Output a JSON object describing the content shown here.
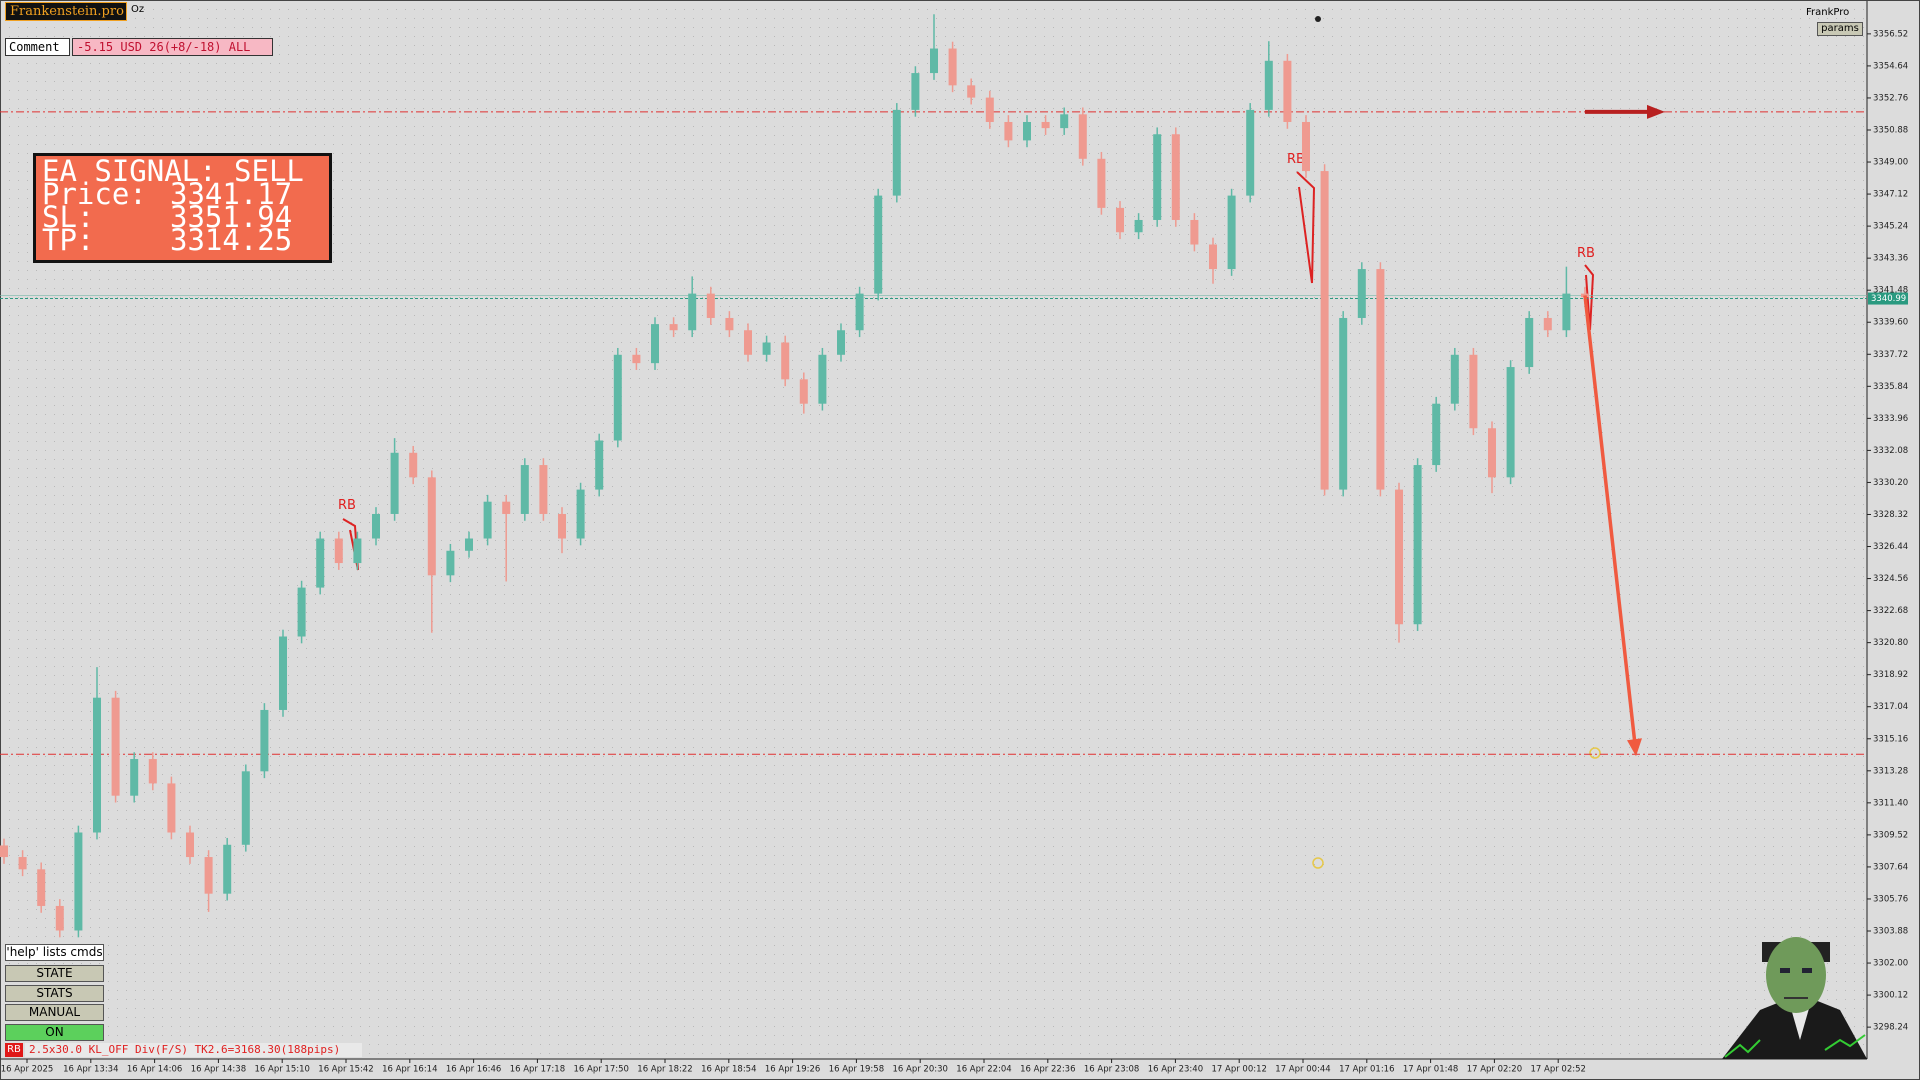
{
  "header": {
    "brand": "Frankenstein.pro",
    "symbol": "Oz",
    "comment_button": "Comment",
    "comment_text": "-5.15 USD 26(+8/-18) ALL",
    "top_right": "FrankPro",
    "params_button": "params"
  },
  "panel": {
    "title": "EA SIGNAL: SELL",
    "labels": [
      "Price:",
      "SL:",
      "TP:"
    ]
  },
  "buttons": [
    "'help' lists cmds",
    "STATE",
    "STATS",
    "MANUAL",
    "ON"
  ],
  "status": {
    "tag": "RB",
    "text": "2.5x30.0 KL_OFF Div(F/S) TK2.6=3168.30(188pips)"
  },
  "chart_data": {
    "type": "candlestick",
    "up_color": "#5fb9a6",
    "down_color": "#ef9a90",
    "ylim": [
      3296.37,
      3358.39
    ],
    "yticks": [
      3356.52,
      3354.64,
      3352.76,
      3350.88,
      {
        "value": 3349,
        "label": "3349.00"
      },
      3347.12,
      3345.24,
      3343.36,
      3341.48,
      {
        "value": 3339.6,
        "label": "3339.60"
      },
      3337.72,
      3335.84,
      3333.96,
      3332.08,
      {
        "value": 3330.2,
        "label": "3330.20"
      },
      3328.32,
      3326.44,
      3324.56,
      3322.68,
      {
        "value": 3320.8,
        "label": "3320.80"
      },
      3318.92,
      3317.04,
      3315.16,
      3313.28,
      {
        "value": 3311.4,
        "label": "3311.40"
      },
      3309.52,
      3307.64,
      3305.76,
      3303.88,
      {
        "value": 3302,
        "label": "3302.00"
      },
      3300.12,
      3298.24
    ],
    "x_labels": [
      "16 Apr 2025",
      "16 Apr 13:34",
      "16 Apr 14:06",
      "16 Apr 14:38",
      "16 Apr 15:10",
      "16 Apr 15:42",
      "16 Apr 16:14",
      "16 Apr 16:46",
      "16 Apr 17:18",
      "16 Apr 17:50",
      "16 Apr 18:22",
      "16 Apr 18:54",
      "16 Apr 19:26",
      "16 Apr 19:58",
      "16 Apr 20:30",
      "16 Apr 22:04",
      "16 Apr 22:36",
      "16 Apr 23:08",
      "16 Apr 23:40",
      "17 Apr 00:12",
      "17 Apr 00:44",
      "17 Apr 01:16",
      "17 Apr 01:48",
      "17 Apr 02:20",
      "17 Apr 02:52"
    ],
    "open": [
      3308.9,
      3308.22,
      3307.5,
      3305.35,
      3303.91,
      3309.66,
      3317.57,
      3311.82,
      3313.97,
      3312.54,
      3309.66,
      3308.22,
      3306.07,
      3308.94,
      3313.25,
      3316.85,
      3321.16,
      3324.03,
      3326.91,
      3325.47,
      3326.91,
      3328.35,
      3331.94,
      3330.5,
      3324.75,
      3326.19,
      3326.91,
      3329.07,
      3328.35,
      3331.22,
      3328.35,
      3326.91,
      3329.78,
      3332.66,
      3337.69,
      3337.2,
      3339.49,
      3339.13,
      3341.28,
      3339.85,
      3339.13,
      3337.69,
      3338.41,
      3336.25,
      3334.82,
      3337.69,
      3339.13,
      3341.28,
      3347.03,
      3352.06,
      3354.22,
      3355.66,
      3353.5,
      3352.78,
      3351.35,
      3350.27,
      3351.35,
      3350.99,
      3351.8,
      3349.19,
      3346.31,
      3344.88,
      3345.6,
      3350.63,
      3345.6,
      3344.16,
      3342.72,
      3347.03,
      3352.06,
      3354.94,
      3351.35,
      3348.47,
      3329.78,
      3339.85,
      3342.72,
      3329.78,
      3321.88,
      3331.22,
      3334.82,
      3337.69,
      3333.38,
      3330.5,
      3336.97,
      3339.85,
      3339.13,
      3341.28
    ],
    "high": [
      3309.3,
      3308.62,
      3307.9,
      3305.75,
      3310.06,
      3319.36,
      3317.97,
      3314.37,
      3314.37,
      3312.94,
      3310.06,
      3308.62,
      3309.34,
      3313.65,
      3317.25,
      3321.56,
      3324.43,
      3327.31,
      3327.31,
      3327.31,
      3328.75,
      3332.8,
      3332.34,
      3330.9,
      3326.59,
      3327.31,
      3329.47,
      3329.47,
      3331.62,
      3331.62,
      3328.75,
      3330.18,
      3333.06,
      3338.09,
      3338.09,
      3339.89,
      3339.89,
      3342.29,
      3341.68,
      3340.25,
      3339.53,
      3338.81,
      3338.81,
      3336.65,
      3338.09,
      3339.53,
      3341.68,
      3347.43,
      3352.46,
      3354.62,
      3357.67,
      3356.06,
      3353.9,
      3353.18,
      3351.75,
      3351.75,
      3351.75,
      3352.2,
      3352.2,
      3349.59,
      3346.71,
      3346.0,
      3351.03,
      3351.03,
      3346.0,
      3344.56,
      3347.43,
      3352.46,
      3356.09,
      3355.34,
      3351.75,
      3348.87,
      3340.25,
      3343.12,
      3343.12,
      3330.18,
      3331.62,
      3335.22,
      3338.09,
      3338.09,
      3333.78,
      3337.37,
      3340.25,
      3340.25,
      3342.86,
      3341.68
    ],
    "low": [
      3307.82,
      3307.1,
      3304.95,
      3303.51,
      3303.51,
      3309.26,
      3311.42,
      3311.42,
      3312.14,
      3309.26,
      3307.82,
      3305.0,
      3305.67,
      3308.54,
      3312.85,
      3316.45,
      3320.76,
      3323.63,
      3325.07,
      3325.07,
      3326.51,
      3327.95,
      3330.1,
      3321.38,
      3324.35,
      3325.79,
      3326.51,
      3324.39,
      3327.95,
      3327.95,
      3326.05,
      3326.51,
      3329.38,
      3332.26,
      3336.8,
      3336.8,
      3338.73,
      3338.73,
      3339.45,
      3338.73,
      3337.29,
      3337.29,
      3335.85,
      3334.24,
      3334.42,
      3337.29,
      3338.73,
      3340.88,
      3346.63,
      3351.66,
      3353.82,
      3353.1,
      3352.38,
      3350.95,
      3349.87,
      3349.87,
      3350.59,
      3350.59,
      3348.79,
      3345.91,
      3344.48,
      3344.48,
      3345.2,
      3345.2,
      3343.76,
      3341.86,
      3342.32,
      3346.63,
      3351.66,
      3350.95,
      3348.07,
      3329.43,
      3329.38,
      3339.45,
      3329.38,
      3320.8,
      3321.48,
      3330.82,
      3334.42,
      3332.98,
      3329.57,
      3330.1,
      3336.57,
      3338.73,
      3338.73,
      3340.67
    ],
    "close": [
      3308.22,
      3307.5,
      3305.35,
      3303.91,
      3309.66,
      3317.57,
      3311.82,
      3313.97,
      3312.54,
      3309.66,
      3308.22,
      3306.07,
      3308.94,
      3313.25,
      3316.85,
      3321.16,
      3324.03,
      3326.91,
      3325.47,
      3326.91,
      3328.35,
      3331.94,
      3330.5,
      3324.75,
      3326.19,
      3326.91,
      3329.07,
      3328.35,
      3331.22,
      3328.35,
      3326.91,
      3329.78,
      3332.66,
      3337.69,
      3337.2,
      3339.49,
      3339.13,
      3341.28,
      3339.85,
      3339.13,
      3337.69,
      3338.41,
      3336.25,
      3334.82,
      3337.69,
      3339.13,
      3341.28,
      3347.03,
      3352.06,
      3354.22,
      3355.66,
      3353.5,
      3352.78,
      3351.35,
      3350.27,
      3351.35,
      3350.99,
      3351.8,
      3349.19,
      3346.31,
      3344.88,
      3345.6,
      3350.63,
      3345.6,
      3344.16,
      3342.72,
      3347.03,
      3352.06,
      3354.94,
      3351.35,
      3348.47,
      3329.78,
      3339.85,
      3342.72,
      3329.78,
      3321.88,
      3331.22,
      3334.82,
      3337.69,
      3333.38,
      3330.5,
      3336.97,
      3339.85,
      3339.13,
      3341.28,
      3341.07
    ],
    "levels": {
      "price": 3341.17,
      "sl": 3351.94,
      "tp": 3314.25,
      "current": 3340.99
    },
    "annotations": [
      "RB",
      "RB",
      "RB"
    ]
  }
}
